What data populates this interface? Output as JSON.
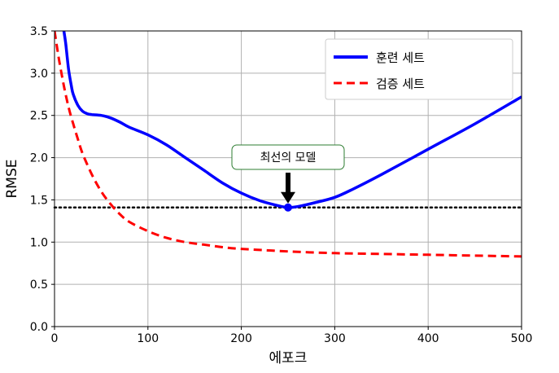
{
  "chart_data": {
    "type": "line",
    "xlabel": "에포크",
    "ylabel": "RMSE",
    "xlim": [
      0,
      500
    ],
    "ylim": [
      0,
      3.5
    ],
    "xticks": [
      "0",
      "100",
      "200",
      "300",
      "400",
      "500"
    ],
    "yticks": [
      "0.0",
      "0.5",
      "1.0",
      "1.5",
      "2.0",
      "2.5",
      "3.0",
      "3.5"
    ],
    "grid": true,
    "legend_position": "top-right",
    "series": [
      {
        "name": "훈련 세트",
        "color": "#0000ff",
        "style": "solid",
        "x": [
          10,
          12,
          15,
          18,
          20,
          25,
          30,
          35,
          40,
          50,
          60,
          70,
          80,
          100,
          120,
          140,
          160,
          180,
          200,
          220,
          240,
          250,
          260,
          280,
          300,
          320,
          350,
          400,
          450,
          500
        ],
        "y": [
          3.5,
          3.35,
          3.05,
          2.85,
          2.75,
          2.62,
          2.55,
          2.52,
          2.51,
          2.5,
          2.47,
          2.42,
          2.36,
          2.27,
          2.15,
          2.0,
          1.85,
          1.7,
          1.58,
          1.49,
          1.43,
          1.41,
          1.42,
          1.47,
          1.53,
          1.63,
          1.8,
          2.1,
          2.4,
          2.72
        ]
      },
      {
        "name": "검증 세트",
        "color": "#ff0000",
        "style": "dashed",
        "x": [
          0,
          5,
          10,
          15,
          20,
          25,
          30,
          40,
          50,
          60,
          70,
          80,
          100,
          120,
          140,
          160,
          180,
          200,
          250,
          300,
          350,
          400,
          450,
          500
        ],
        "y": [
          3.5,
          3.15,
          2.85,
          2.6,
          2.4,
          2.22,
          2.05,
          1.8,
          1.6,
          1.45,
          1.33,
          1.24,
          1.13,
          1.05,
          1.0,
          0.97,
          0.94,
          0.92,
          0.89,
          0.87,
          0.86,
          0.85,
          0.84,
          0.83
        ]
      }
    ],
    "reference_line": {
      "y": 1.41,
      "style": "dotted",
      "color": "#000000"
    },
    "best_point": {
      "x": 250,
      "y": 1.41,
      "color": "#0000ff"
    },
    "annotation": {
      "text": "최선의 모델",
      "x": 250,
      "y": 1.41
    }
  }
}
